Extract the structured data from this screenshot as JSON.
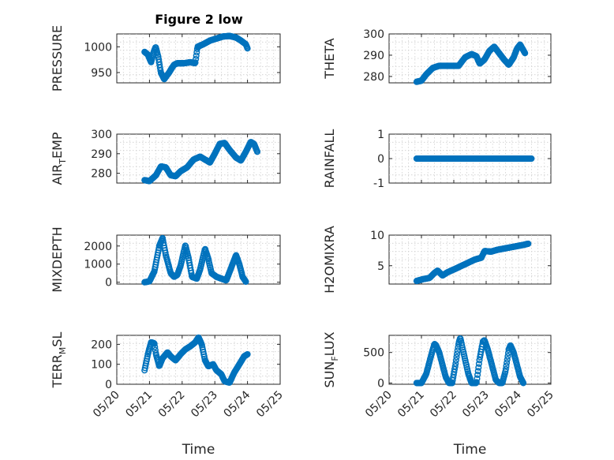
{
  "figure": {
    "title": "Figure 2 low"
  },
  "colors": {
    "marker": "#0072BD",
    "axis": "#262626",
    "grid": "#cfcfcf"
  },
  "x_ticks": [
    "05/20",
    "05/21",
    "05/22",
    "05/23",
    "05/24",
    "05/25"
  ],
  "x_label": "Time",
  "chart_data": [
    {
      "id": "pressure",
      "type": "scatter",
      "ylabel": "PRESSURE",
      "xlim": [
        "05/20",
        "05/25"
      ],
      "ylim": [
        930,
        1025
      ],
      "yticks": [
        950,
        1000
      ],
      "ytick_labels": [
        "950",
        "1000"
      ],
      "series": [
        {
          "name": "PRESSURE",
          "anchors": [
            [
              0.0,
              990
            ],
            [
              0.1,
              985
            ],
            [
              0.2,
              970
            ],
            [
              0.28,
              990
            ],
            [
              0.34,
              1000
            ],
            [
              0.42,
              980
            ],
            [
              0.5,
              950
            ],
            [
              0.6,
              937
            ],
            [
              0.75,
              950
            ],
            [
              0.9,
              965
            ],
            [
              1.0,
              968
            ],
            [
              1.2,
              968
            ],
            [
              1.4,
              970
            ],
            [
              1.55,
              968
            ],
            [
              1.62,
              1000
            ],
            [
              1.8,
              1005
            ],
            [
              2.0,
              1012
            ],
            [
              2.2,
              1016
            ],
            [
              2.4,
              1020
            ],
            [
              2.6,
              1021
            ],
            [
              2.8,
              1018
            ],
            [
              2.95,
              1012
            ],
            [
              3.1,
              1005
            ],
            [
              3.15,
              997
            ]
          ]
        }
      ]
    },
    {
      "id": "theta",
      "type": "scatter",
      "ylabel": "THETA",
      "xlim": [
        "05/20",
        "05/25"
      ],
      "ylim": [
        277,
        300
      ],
      "yticks": [
        280,
        290,
        300
      ],
      "ytick_labels": [
        "280",
        "290",
        "300"
      ],
      "series": [
        {
          "name": "THETA",
          "anchors": [
            [
              0.0,
              277.5
            ],
            [
              0.15,
              278
            ],
            [
              0.3,
              281
            ],
            [
              0.5,
              284
            ],
            [
              0.7,
              285
            ],
            [
              1.0,
              285
            ],
            [
              1.3,
              285
            ],
            [
              1.5,
              289
            ],
            [
              1.7,
              290.5
            ],
            [
              1.85,
              289.5
            ],
            [
              1.95,
              286
            ],
            [
              2.1,
              288
            ],
            [
              2.25,
              292
            ],
            [
              2.4,
              294
            ],
            [
              2.55,
              291
            ],
            [
              2.7,
              288
            ],
            [
              2.85,
              285.5
            ],
            [
              3.0,
              289
            ],
            [
              3.1,
              293
            ],
            [
              3.2,
              295
            ],
            [
              3.35,
              291
            ]
          ]
        }
      ]
    },
    {
      "id": "air_temp",
      "type": "scatter",
      "ylabel": "AIR_TEMP",
      "xlim": [
        "05/20",
        "05/25"
      ],
      "ylim": [
        275,
        300
      ],
      "yticks": [
        280,
        290,
        300
      ],
      "ytick_labels": [
        "280",
        "290",
        "300"
      ],
      "series": [
        {
          "name": "AIR_TEMP",
          "anchors": [
            [
              0.0,
              276.5
            ],
            [
              0.15,
              276
            ],
            [
              0.35,
              279
            ],
            [
              0.5,
              283.5
            ],
            [
              0.65,
              283
            ],
            [
              0.8,
              279
            ],
            [
              0.95,
              278.5
            ],
            [
              1.1,
              281
            ],
            [
              1.3,
              283
            ],
            [
              1.5,
              287
            ],
            [
              1.7,
              288.5
            ],
            [
              1.85,
              287
            ],
            [
              2.0,
              285.5
            ],
            [
              2.15,
              290
            ],
            [
              2.3,
              295
            ],
            [
              2.45,
              295.5
            ],
            [
              2.6,
              292
            ],
            [
              2.8,
              288
            ],
            [
              2.95,
              286.5
            ],
            [
              3.1,
              291
            ],
            [
              3.25,
              296
            ],
            [
              3.35,
              295
            ],
            [
              3.45,
              291
            ]
          ]
        }
      ]
    },
    {
      "id": "rainfall",
      "type": "scatter",
      "ylabel": "RAINFALL",
      "xlim": [
        "05/20",
        "05/25"
      ],
      "ylim": [
        -1,
        1
      ],
      "yticks": [
        -1,
        0,
        1
      ],
      "ytick_labels": [
        "-1",
        "0",
        "1"
      ],
      "series": [
        {
          "name": "RAINFALL",
          "anchors": [
            [
              0.0,
              0
            ],
            [
              3.55,
              0
            ]
          ]
        }
      ]
    },
    {
      "id": "mixdepth",
      "type": "scatter",
      "ylabel": "MIXDEPTH",
      "xlim": [
        "05/20",
        "05/25"
      ],
      "ylim": [
        -100,
        2600
      ],
      "yticks": [
        0,
        1000,
        2000
      ],
      "ytick_labels": [
        "0",
        "1000",
        "2000"
      ],
      "series": [
        {
          "name": "MIXDEPTH",
          "anchors": [
            [
              0.0,
              0
            ],
            [
              0.15,
              50
            ],
            [
              0.3,
              600
            ],
            [
              0.45,
              2000
            ],
            [
              0.55,
              2450
            ],
            [
              0.65,
              1500
            ],
            [
              0.8,
              500
            ],
            [
              0.9,
              300
            ],
            [
              1.0,
              400
            ],
            [
              1.1,
              900
            ],
            [
              1.25,
              2050
            ],
            [
              1.35,
              1300
            ],
            [
              1.45,
              300
            ],
            [
              1.6,
              200
            ],
            [
              1.7,
              700
            ],
            [
              1.85,
              1850
            ],
            [
              1.95,
              1300
            ],
            [
              2.05,
              500
            ],
            [
              2.2,
              300
            ],
            [
              2.35,
              200
            ],
            [
              2.5,
              100
            ],
            [
              2.65,
              800
            ],
            [
              2.8,
              1500
            ],
            [
              2.9,
              1000
            ],
            [
              3.0,
              300
            ],
            [
              3.1,
              30
            ]
          ]
        }
      ]
    },
    {
      "id": "h2omixra",
      "type": "scatter",
      "ylabel": "H2OMIXRA",
      "xlim": [
        "05/20",
        "05/25"
      ],
      "ylim": [
        2,
        10
      ],
      "yticks": [
        5,
        10
      ],
      "ytick_labels": [
        "5",
        "10"
      ],
      "series": [
        {
          "name": "H2OMIXRA",
          "anchors": [
            [
              0.0,
              2.5
            ],
            [
              0.2,
              2.8
            ],
            [
              0.4,
              3.0
            ],
            [
              0.55,
              3.8
            ],
            [
              0.65,
              4.2
            ],
            [
              0.8,
              3.4
            ],
            [
              0.95,
              3.9
            ],
            [
              1.2,
              4.5
            ],
            [
              1.4,
              5.0
            ],
            [
              1.6,
              5.5
            ],
            [
              1.8,
              6.0
            ],
            [
              2.0,
              6.3
            ],
            [
              2.1,
              7.4
            ],
            [
              2.3,
              7.3
            ],
            [
              2.5,
              7.6
            ],
            [
              2.7,
              7.8
            ],
            [
              2.9,
              8.0
            ],
            [
              3.1,
              8.2
            ],
            [
              3.3,
              8.4
            ],
            [
              3.45,
              8.6
            ]
          ]
        }
      ]
    },
    {
      "id": "terr_msl",
      "type": "scatter",
      "ylabel": "TERR_MSL",
      "xlim": [
        "05/20",
        "05/25"
      ],
      "ylim": [
        0,
        245
      ],
      "yticks": [
        0,
        100,
        200
      ],
      "ytick_labels": [
        "0",
        "100",
        "200"
      ],
      "series": [
        {
          "name": "TERR_MSL",
          "anchors": [
            [
              0.0,
              70
            ],
            [
              0.1,
              150
            ],
            [
              0.2,
              210
            ],
            [
              0.3,
              205
            ],
            [
              0.35,
              150
            ],
            [
              0.45,
              90
            ],
            [
              0.55,
              130
            ],
            [
              0.7,
              160
            ],
            [
              0.8,
              140
            ],
            [
              0.95,
              120
            ],
            [
              1.1,
              150
            ],
            [
              1.25,
              175
            ],
            [
              1.4,
              190
            ],
            [
              1.55,
              210
            ],
            [
              1.65,
              235
            ],
            [
              1.75,
              200
            ],
            [
              1.85,
              120
            ],
            [
              1.95,
              90
            ],
            [
              2.1,
              100
            ],
            [
              2.2,
              70
            ],
            [
              2.35,
              50
            ],
            [
              2.45,
              15
            ],
            [
              2.6,
              8
            ],
            [
              2.75,
              60
            ],
            [
              2.9,
              100
            ],
            [
              3.05,
              140
            ],
            [
              3.15,
              150
            ]
          ]
        }
      ]
    },
    {
      "id": "sun_flux",
      "type": "scatter",
      "ylabel": "SUN_FLUX",
      "xlim": [
        "05/20",
        "05/25"
      ],
      "ylim": [
        -20,
        780
      ],
      "yticks": [
        0,
        500
      ],
      "ytick_labels": [
        "0",
        "500"
      ],
      "series": [
        {
          "name": "SUN_FLUX",
          "anchors": [
            [
              0.0,
              0
            ],
            [
              0.15,
              0
            ],
            [
              0.3,
              150
            ],
            [
              0.45,
              450
            ],
            [
              0.55,
              640
            ],
            [
              0.6,
              620
            ],
            [
              0.7,
              500
            ],
            [
              0.8,
              300
            ],
            [
              0.9,
              100
            ],
            [
              1.0,
              0
            ],
            [
              1.1,
              0
            ],
            [
              1.2,
              300
            ],
            [
              1.3,
              650
            ],
            [
              1.35,
              740
            ],
            [
              1.45,
              500
            ],
            [
              1.6,
              150
            ],
            [
              1.7,
              0
            ],
            [
              1.85,
              0
            ],
            [
              1.95,
              400
            ],
            [
              2.05,
              680
            ],
            [
              2.1,
              700
            ],
            [
              2.2,
              550
            ],
            [
              2.35,
              250
            ],
            [
              2.45,
              50
            ],
            [
              2.55,
              0
            ],
            [
              2.65,
              0
            ],
            [
              2.75,
              200
            ],
            [
              2.85,
              550
            ],
            [
              2.9,
              620
            ],
            [
              3.0,
              500
            ],
            [
              3.1,
              300
            ],
            [
              3.2,
              100
            ],
            [
              3.3,
              0
            ]
          ]
        }
      ]
    }
  ]
}
